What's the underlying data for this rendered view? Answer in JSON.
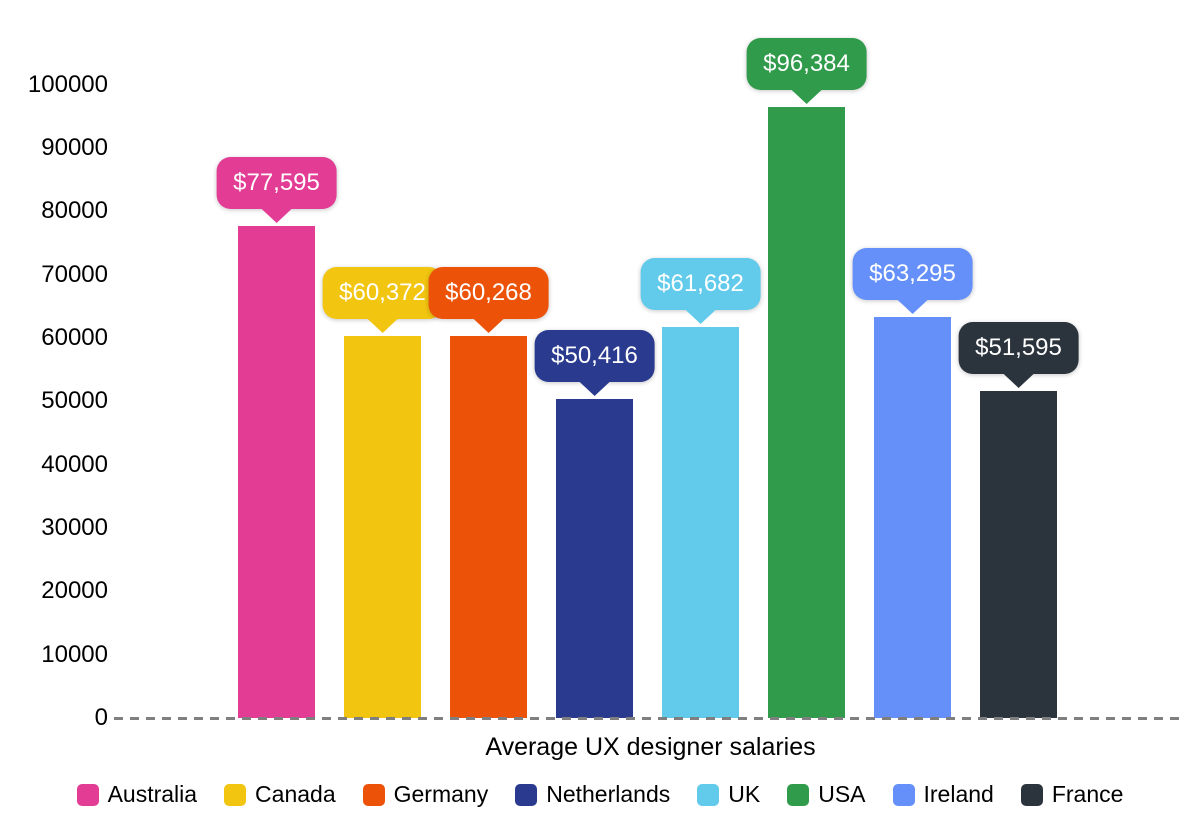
{
  "chart_data": {
    "type": "bar",
    "title": "Average UX designer salaries",
    "categories": [
      "Australia",
      "Canada",
      "Germany",
      "Netherlands",
      "UK",
      "USA",
      "Ireland",
      "France"
    ],
    "values": [
      77595,
      60372,
      60268,
      50416,
      61682,
      96384,
      63295,
      51595
    ],
    "value_labels": [
      "$77,595",
      "$60,372",
      "$60,268",
      "$50,416",
      "$61,682",
      "$96,384",
      "$63,295",
      "$51,595"
    ],
    "colors": [
      "#e23c95",
      "#f2c511",
      "#ec5308",
      "#2a3a8f",
      "#62cbec",
      "#2f9b4b",
      "#6590fa",
      "#2b333c"
    ],
    "xlabel": "",
    "ylabel": "",
    "ylim": [
      0,
      100000
    ],
    "y_tick_step": 10000,
    "y_tick_labels": [
      "0",
      "10000",
      "20000",
      "30000",
      "40000",
      "50000",
      "60000",
      "70000",
      "80000",
      "90000",
      "100000"
    ],
    "grid": "off",
    "baseline_style": "dashed",
    "baseline_color": "#7f7f7f",
    "legend_position": "bottom",
    "value_label_style": "speech-bubble",
    "value_label_text_color": "#ffffff",
    "axis_text_color": "#000000"
  }
}
